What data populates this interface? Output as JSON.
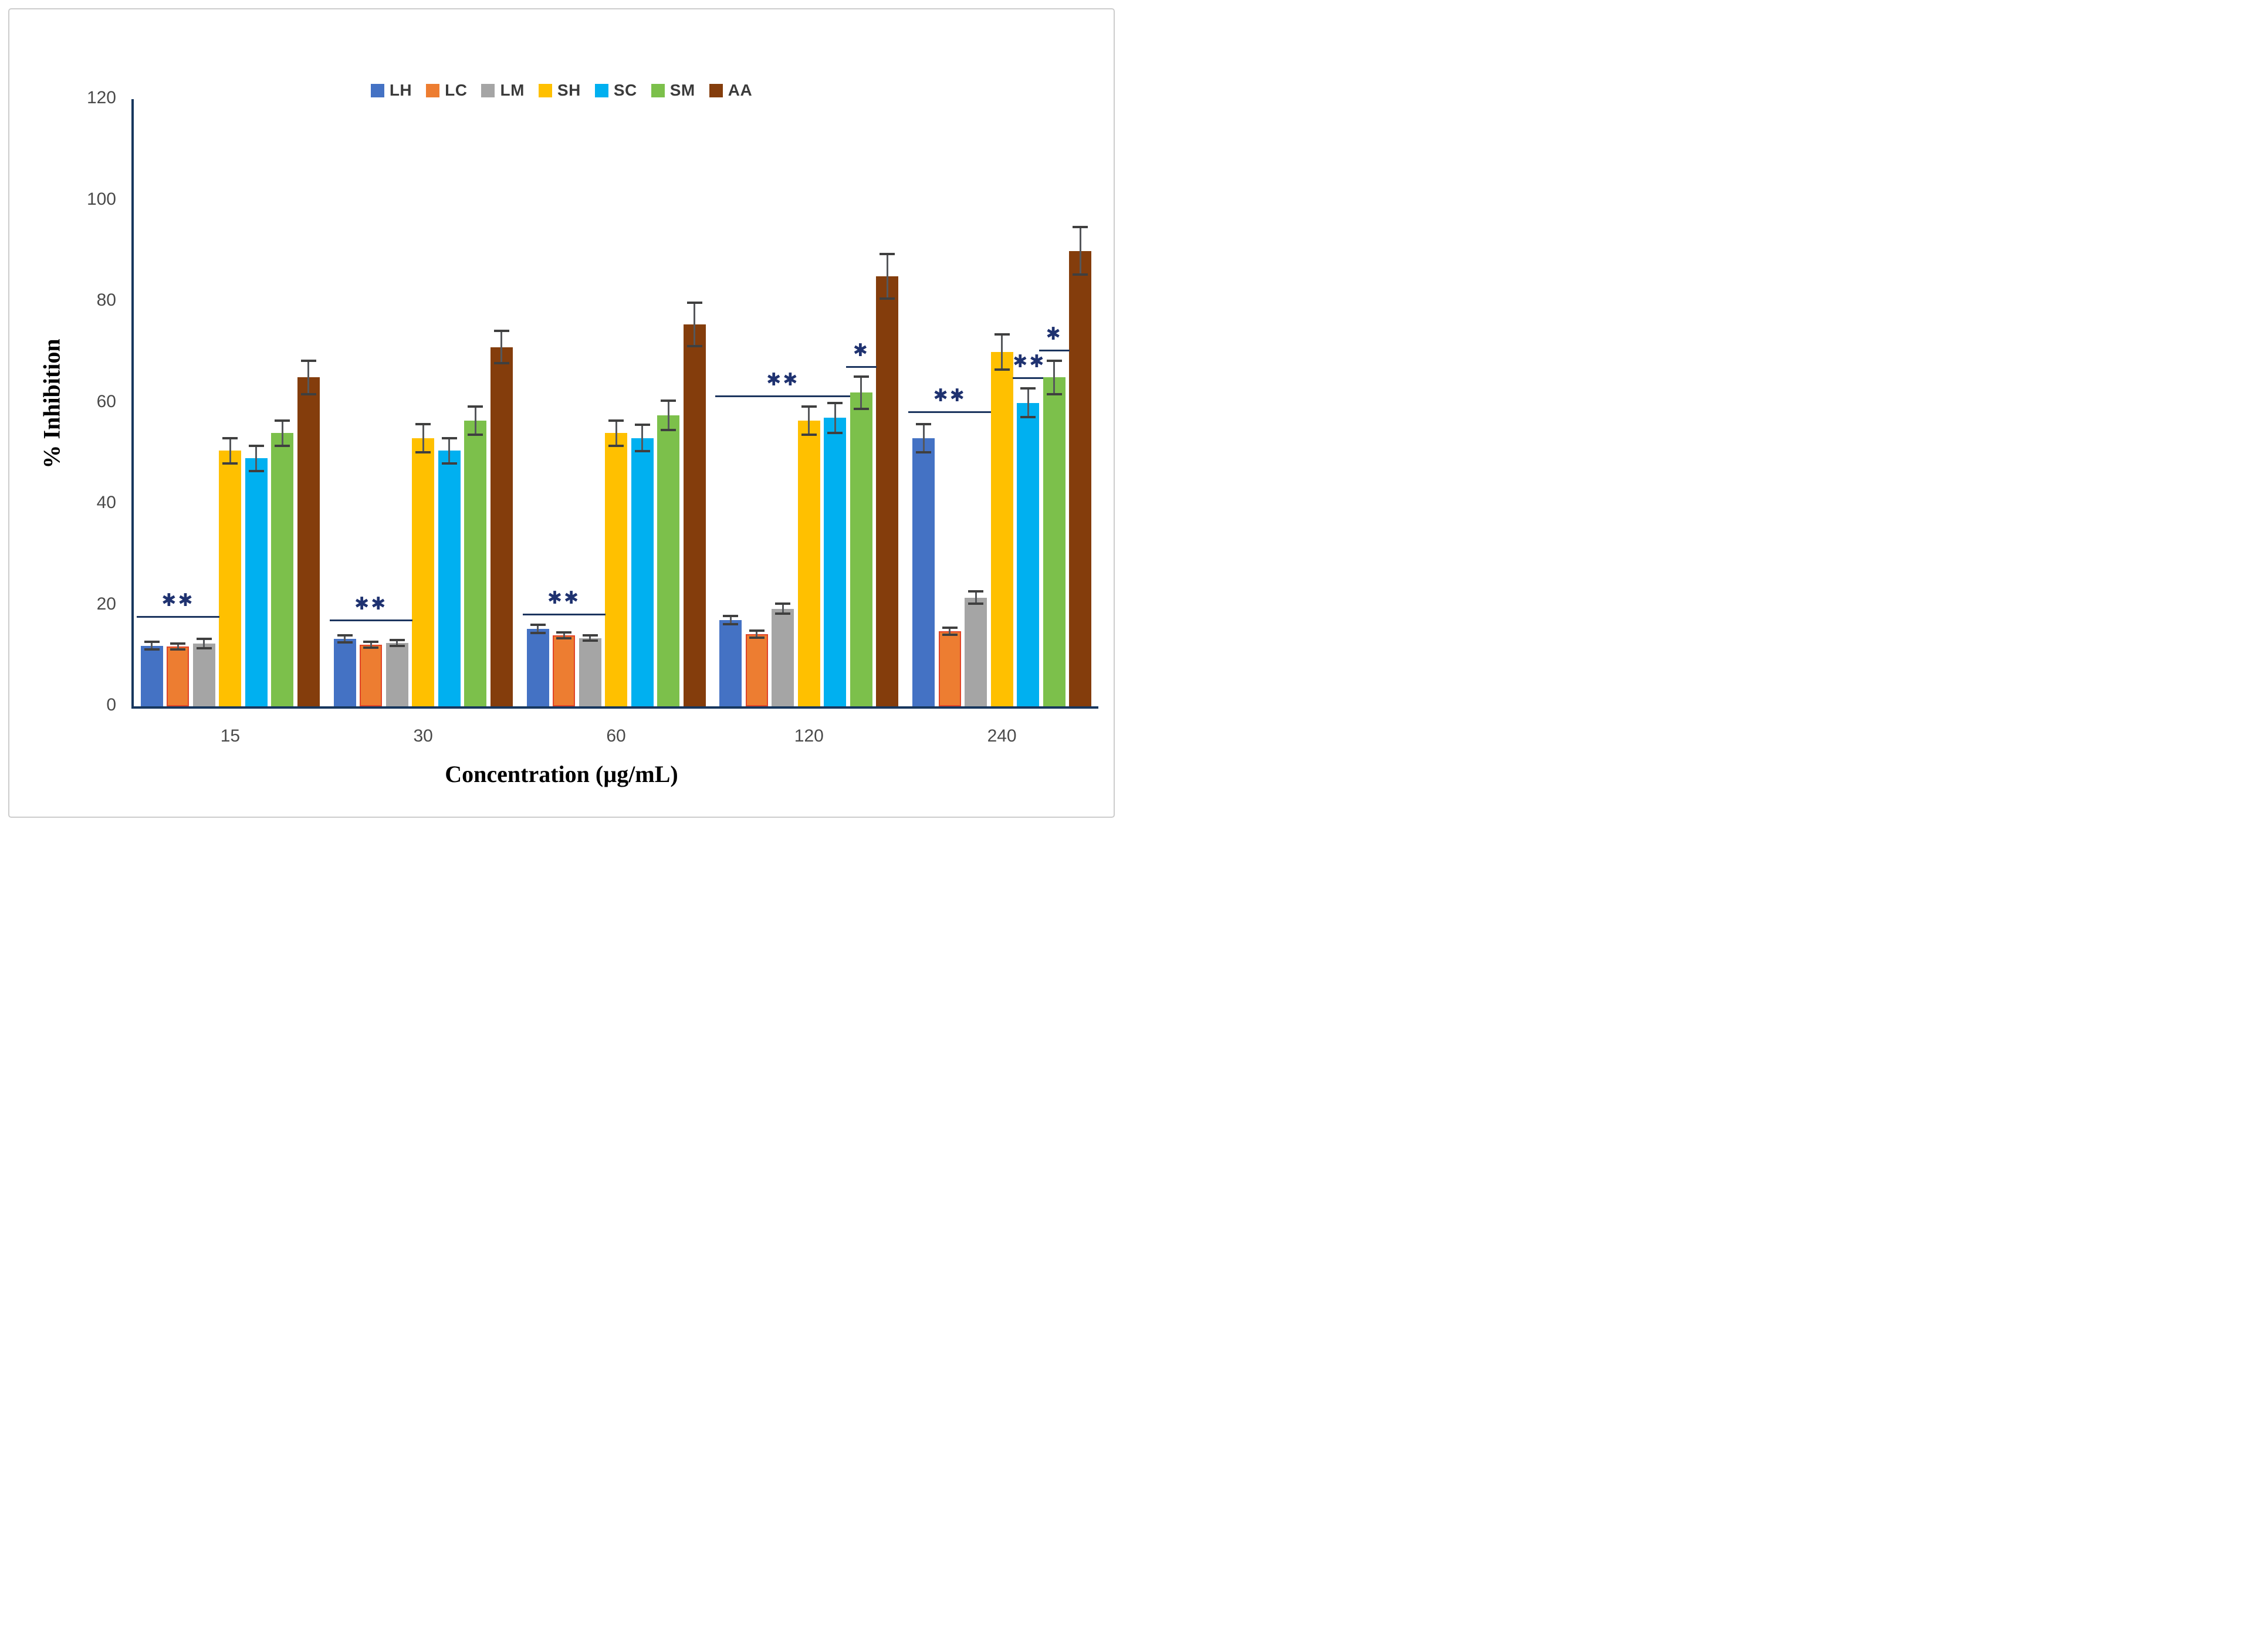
{
  "chart_data": {
    "type": "bar",
    "title": "",
    "xlabel": "Concentration (µg/mL)",
    "ylabel": "% Inhibition",
    "ylim": [
      0,
      120
    ],
    "ytick_step": 20,
    "yticks": [
      "0",
      "20",
      "40",
      "60",
      "80",
      "100",
      "120"
    ],
    "grid": "off",
    "legend_position": "top-center",
    "categories": [
      "15",
      "30",
      "60",
      "120",
      "240"
    ],
    "series": [
      {
        "name": "LH",
        "color": "#4472C4",
        "values": [
          12.0,
          13.3,
          15.3,
          17.0,
          53.0
        ],
        "errors": [
          0.8,
          0.7,
          0.8,
          0.8,
          2.8
        ]
      },
      {
        "name": "LC",
        "color": "#ED7D31",
        "border": "#e04427",
        "values": [
          11.8,
          12.2,
          14.0,
          14.3,
          14.8
        ],
        "errors": [
          0.6,
          0.6,
          0.6,
          0.7,
          0.7
        ]
      },
      {
        "name": "LM",
        "color": "#A5A5A5",
        "values": [
          12.4,
          12.5,
          13.5,
          19.3,
          21.5
        ],
        "errors": [
          0.9,
          0.6,
          0.5,
          1.0,
          1.2
        ]
      },
      {
        "name": "SH",
        "color": "#FFC000",
        "values": [
          50.5,
          53.0,
          54.0,
          56.5,
          70.0
        ],
        "errors": [
          2.5,
          2.8,
          2.5,
          2.8,
          3.5
        ]
      },
      {
        "name": "SC",
        "color": "#00B0F0",
        "values": [
          49.0,
          50.5,
          53.0,
          57.0,
          60.0
        ],
        "errors": [
          2.5,
          2.5,
          2.6,
          3.0,
          2.8
        ]
      },
      {
        "name": "SM",
        "color": "#7CC04B",
        "values": [
          54.0,
          56.5,
          57.5,
          62.0,
          65.0
        ],
        "errors": [
          2.5,
          2.8,
          2.9,
          3.2,
          3.3
        ]
      },
      {
        "name": "AA",
        "color": "#843D0C",
        "values": [
          65.0,
          71.0,
          75.5,
          85.0,
          90.0
        ],
        "errors": [
          3.3,
          3.2,
          4.3,
          4.4,
          4.7
        ]
      }
    ],
    "annotations": [
      {
        "group": 0,
        "label": "**",
        "from_series": 0,
        "to_series": 2,
        "y": 17.8
      },
      {
        "group": 1,
        "label": "**",
        "from_series": 0,
        "to_series": 2,
        "y": 17.2
      },
      {
        "group": 2,
        "label": "**",
        "from_series": 0,
        "to_series": 2,
        "y": 18.3
      },
      {
        "group": 3,
        "label": "**",
        "from_series": 0,
        "to_series": 4,
        "y": 61.5
      },
      {
        "group": 3,
        "label": "*",
        "from_series": 5,
        "to_series": 5,
        "y": 67.3
      },
      {
        "group": 4,
        "label": "**",
        "from_series": 0,
        "to_series": 2,
        "y": 58.3
      },
      {
        "group": 4,
        "label": "**",
        "from_series": 4,
        "to_series": 4,
        "y": 65.0
      },
      {
        "group": 4,
        "label": "*",
        "from_series": 5,
        "to_series": 5,
        "y": 70.5
      }
    ]
  }
}
